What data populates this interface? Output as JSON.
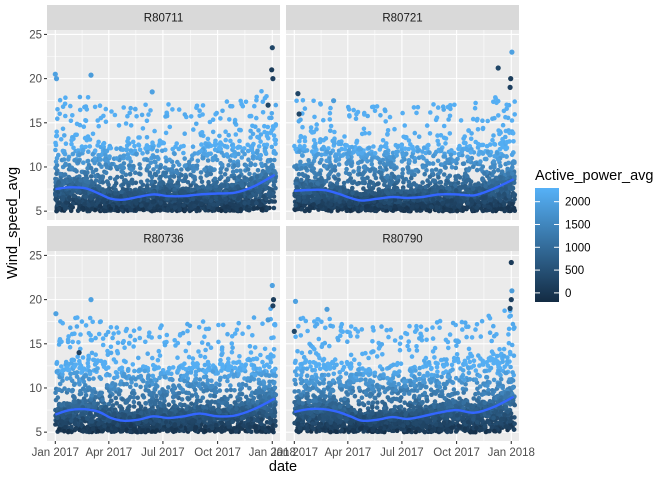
{
  "chart_data": {
    "type": "scatter",
    "xlabel": "date",
    "ylabel": "Wind_speed_avg",
    "xlim": [
      "2016-12-18",
      "2018-01-14"
    ],
    "ylim": [
      4.0,
      25.5
    ],
    "x_ticks": [
      {
        "date": "2017-01-01",
        "label": "Jan 2017"
      },
      {
        "date": "2017-04-01",
        "label": "Apr 2017"
      },
      {
        "date": "2017-07-01",
        "label": "Jul 2017"
      },
      {
        "date": "2017-10-01",
        "label": "Oct 2017"
      },
      {
        "date": "2018-01-01",
        "label": "Jan 2018"
      }
    ],
    "y_ticks": [
      5,
      10,
      15,
      20,
      25
    ],
    "grid": true,
    "legend": {
      "title": "Active_power_avg",
      "type": "continuous",
      "placement": "right",
      "low_color": "#132B43",
      "high_color": "#56B1F7",
      "range": [
        -200,
        2300
      ],
      "breaks": [
        0,
        500,
        1000,
        1500,
        2000
      ]
    },
    "smooth_color": "#3366FF",
    "panels": [
      {
        "label": "R80711",
        "smooth": [
          {
            "date": "2017-01-01",
            "y": 7.5
          },
          {
            "date": "2017-01-25",
            "y": 7.7
          },
          {
            "date": "2017-02-20",
            "y": 7.6
          },
          {
            "date": "2017-03-15",
            "y": 7.0
          },
          {
            "date": "2017-04-05",
            "y": 6.4
          },
          {
            "date": "2017-04-25",
            "y": 6.3
          },
          {
            "date": "2017-05-20",
            "y": 6.6
          },
          {
            "date": "2017-06-15",
            "y": 6.9
          },
          {
            "date": "2017-07-10",
            "y": 6.7
          },
          {
            "date": "2017-08-05",
            "y": 6.7
          },
          {
            "date": "2017-09-01",
            "y": 6.9
          },
          {
            "date": "2017-10-01",
            "y": 7.0
          },
          {
            "date": "2017-10-31",
            "y": 7.1
          },
          {
            "date": "2017-12-01",
            "y": 7.8
          },
          {
            "date": "2018-01-05",
            "y": 9.1
          }
        ],
        "highlights": [
          {
            "date": "2017-01-01",
            "y": 20.5,
            "power": 2000
          },
          {
            "date": "2017-01-03",
            "y": 20.0,
            "power": 1950
          },
          {
            "date": "2017-03-02",
            "y": 20.4,
            "power": 1900
          },
          {
            "date": "2017-06-13",
            "y": 18.5,
            "power": 2000
          },
          {
            "date": "2017-12-25",
            "y": 17.0,
            "power": 300
          },
          {
            "date": "2017-12-31",
            "y": 21.0,
            "power": 100
          },
          {
            "date": "2018-01-01",
            "y": 23.5,
            "power": 300
          },
          {
            "date": "2018-01-02",
            "y": 20.0,
            "power": 200
          }
        ]
      },
      {
        "label": "R80721",
        "smooth": [
          {
            "date": "2017-01-01",
            "y": 7.3
          },
          {
            "date": "2017-01-25",
            "y": 7.4
          },
          {
            "date": "2017-02-20",
            "y": 7.4
          },
          {
            "date": "2017-03-15",
            "y": 7.0
          },
          {
            "date": "2017-04-05",
            "y": 6.5
          },
          {
            "date": "2017-04-25",
            "y": 6.2
          },
          {
            "date": "2017-05-20",
            "y": 6.4
          },
          {
            "date": "2017-06-15",
            "y": 6.6
          },
          {
            "date": "2017-07-10",
            "y": 6.5
          },
          {
            "date": "2017-08-05",
            "y": 6.6
          },
          {
            "date": "2017-09-01",
            "y": 6.9
          },
          {
            "date": "2017-10-01",
            "y": 6.9
          },
          {
            "date": "2017-10-31",
            "y": 6.8
          },
          {
            "date": "2017-12-01",
            "y": 7.5
          },
          {
            "date": "2018-01-05",
            "y": 8.6
          }
        ],
        "highlights": [
          {
            "date": "2017-01-07",
            "y": 18.3,
            "power": 300
          },
          {
            "date": "2017-01-09",
            "y": 16.0,
            "power": 300
          },
          {
            "date": "2017-03-08",
            "y": 17.5,
            "power": 1900
          },
          {
            "date": "2017-12-10",
            "y": 21.2,
            "power": 300
          },
          {
            "date": "2018-01-02",
            "y": 23.0,
            "power": 2000
          },
          {
            "date": "2017-12-31",
            "y": 20.0,
            "power": 150
          },
          {
            "date": "2017-12-30",
            "y": 19.0,
            "power": 200
          }
        ]
      },
      {
        "label": "R80736",
        "smooth": [
          {
            "date": "2017-01-01",
            "y": 7.0
          },
          {
            "date": "2017-01-25",
            "y": 7.5
          },
          {
            "date": "2017-02-20",
            "y": 7.6
          },
          {
            "date": "2017-03-15",
            "y": 7.3
          },
          {
            "date": "2017-04-05",
            "y": 6.6
          },
          {
            "date": "2017-04-25",
            "y": 6.3
          },
          {
            "date": "2017-05-20",
            "y": 6.4
          },
          {
            "date": "2017-06-15",
            "y": 6.8
          },
          {
            "date": "2017-07-10",
            "y": 6.6
          },
          {
            "date": "2017-08-05",
            "y": 6.8
          },
          {
            "date": "2017-09-01",
            "y": 7.1
          },
          {
            "date": "2017-10-01",
            "y": 6.8
          },
          {
            "date": "2017-10-31",
            "y": 6.9
          },
          {
            "date": "2017-12-01",
            "y": 7.6
          },
          {
            "date": "2018-01-05",
            "y": 8.8
          }
        ],
        "highlights": [
          {
            "date": "2017-01-02",
            "y": 18.4,
            "power": 2000
          },
          {
            "date": "2017-03-02",
            "y": 20.0,
            "power": 2000
          },
          {
            "date": "2017-12-25",
            "y": 17.7,
            "power": 1900
          },
          {
            "date": "2018-01-01",
            "y": 21.6,
            "power": 2000
          },
          {
            "date": "2018-01-03",
            "y": 20.0,
            "power": 150
          },
          {
            "date": "2018-01-02",
            "y": 19.3,
            "power": 200
          },
          {
            "date": "2017-02-10",
            "y": 14.0,
            "power": 200
          }
        ]
      },
      {
        "label": "R80790",
        "smooth": [
          {
            "date": "2017-01-01",
            "y": 7.3
          },
          {
            "date": "2017-01-25",
            "y": 7.6
          },
          {
            "date": "2017-02-20",
            "y": 7.6
          },
          {
            "date": "2017-03-15",
            "y": 7.3
          },
          {
            "date": "2017-04-05",
            "y": 6.8
          },
          {
            "date": "2017-04-25",
            "y": 6.3
          },
          {
            "date": "2017-05-20",
            "y": 6.4
          },
          {
            "date": "2017-06-15",
            "y": 6.7
          },
          {
            "date": "2017-07-10",
            "y": 6.5
          },
          {
            "date": "2017-08-05",
            "y": 6.8
          },
          {
            "date": "2017-09-01",
            "y": 7.2
          },
          {
            "date": "2017-10-01",
            "y": 7.5
          },
          {
            "date": "2017-10-31",
            "y": 7.2
          },
          {
            "date": "2017-12-01",
            "y": 7.8
          },
          {
            "date": "2018-01-05",
            "y": 9.0
          }
        ],
        "highlights": [
          {
            "date": "2017-01-01",
            "y": 16.4,
            "power": 300
          },
          {
            "date": "2017-01-03",
            "y": 19.8,
            "power": 2000
          },
          {
            "date": "2017-02-25",
            "y": 18.9,
            "power": 1900
          },
          {
            "date": "2017-12-30",
            "y": 19.0,
            "power": 300
          },
          {
            "date": "2018-01-01",
            "y": 24.2,
            "power": 100
          },
          {
            "date": "2018-01-02",
            "y": 21.0,
            "power": 1900
          },
          {
            "date": "2018-01-01",
            "y": 20.0,
            "power": 200
          }
        ]
      }
    ]
  }
}
